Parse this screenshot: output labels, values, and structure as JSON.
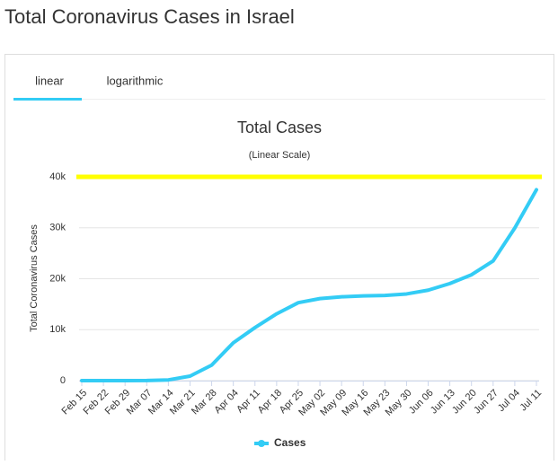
{
  "page_title": "Total Coronavirus Cases in Israel",
  "tabs": [
    "linear",
    "logarithmic"
  ],
  "chart_data": {
    "type": "line",
    "title": "Total Cases",
    "subtitle": "(Linear Scale)",
    "y_axis_label": "Total Coronavirus Cases",
    "categories": [
      "Feb 15",
      "Feb 22",
      "Feb 29",
      "Mar 07",
      "Mar 14",
      "Mar 21",
      "Mar 28",
      "Apr 04",
      "Apr 11",
      "Apr 18",
      "Apr 25",
      "May 02",
      "May 09",
      "May 16",
      "May 23",
      "May 30",
      "Jun 06",
      "Jun 13",
      "Jun 20",
      "Jun 27",
      "Jul 04",
      "Jul 11"
    ],
    "series": [
      {
        "name": "Cases",
        "color": "#33ccf5",
        "values": [
          0,
          1,
          7,
          21,
          143,
          883,
          3035,
          7428,
          10408,
          13107,
          15298,
          16101,
          16454,
          16621,
          16717,
          17012,
          17752,
          19055,
          20778,
          23491,
          29958,
          37464
        ]
      }
    ],
    "ylim": [
      0,
      40000
    ],
    "yticks": [
      0,
      {
        "value": 10000,
        "label": "10k"
      },
      {
        "value": 20000,
        "label": "20k"
      },
      {
        "value": 30000,
        "label": "30k"
      },
      {
        "value": 40000,
        "label": "40k"
      }
    ],
    "grid": true,
    "highlight_line": {
      "value": 40000,
      "color": "#ffff00"
    }
  }
}
